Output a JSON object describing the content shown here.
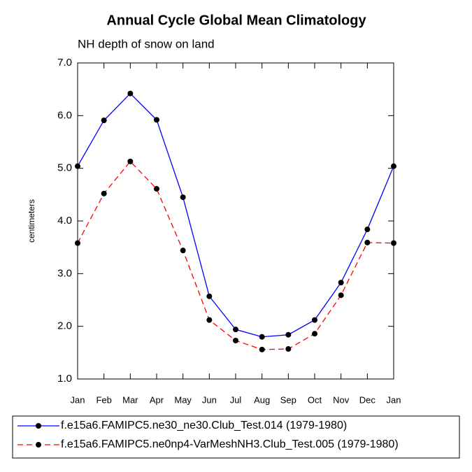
{
  "chart_data": {
    "type": "line",
    "title": "Annual Cycle Global Mean Climatology",
    "subtitle": "NH depth of snow on land",
    "y_label": "centimeters",
    "categories": [
      "Jan",
      "Feb",
      "Mar",
      "Apr",
      "May",
      "Jun",
      "Jul",
      "Aug",
      "Sep",
      "Oct",
      "Nov",
      "Dec",
      "Jan"
    ],
    "series": [
      {
        "name": "f.e15a6.FAMIPC5.ne30_ne30.Club_Test.014 (1979-1980)",
        "color": "#0000ff",
        "dash": false,
        "values": [
          5.04,
          5.91,
          6.42,
          5.92,
          4.45,
          2.57,
          1.94,
          1.8,
          1.84,
          2.12,
          2.83,
          3.84,
          5.04
        ]
      },
      {
        "name": "f.e15a6.FAMIPC5.ne0np4-VarMeshNH3.Club_Test.005 (1979-1980)",
        "color": "#ff0000",
        "dash": true,
        "values": [
          3.58,
          4.52,
          5.13,
          4.61,
          3.44,
          2.12,
          1.73,
          1.56,
          1.57,
          1.86,
          2.59,
          3.59,
          3.58
        ]
      }
    ],
    "ylim": [
      1,
      7
    ],
    "yticks": [
      {
        "value": 1,
        "label": "1.0"
      },
      {
        "value": 2,
        "label": "2.0"
      },
      {
        "value": 3,
        "label": "3.0"
      },
      {
        "value": 4,
        "label": "4.0"
      },
      {
        "value": 5,
        "label": "5.0"
      },
      {
        "value": 6,
        "label": "6.0"
      },
      {
        "value": 7,
        "label": "7.0"
      }
    ]
  }
}
